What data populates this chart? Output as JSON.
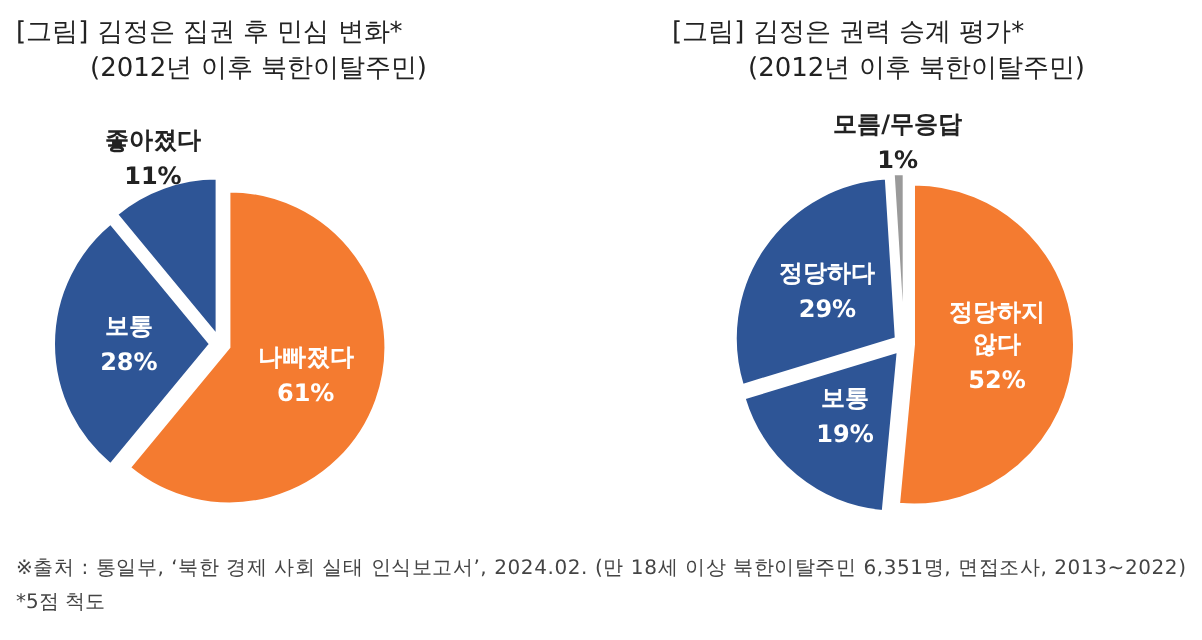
{
  "chart_data": [
    {
      "type": "pie",
      "title": "[그림] 김정은 집권 후 민심 변화*",
      "subtitle": "(2012년 이후 북한이탈주민)",
      "categories": [
        "나빠졌다",
        "보통",
        "좋아졌다"
      ],
      "values": [
        61,
        28,
        11
      ],
      "value_labels": [
        "61%",
        "28%",
        "11%"
      ],
      "colors": [
        "#f47b30",
        "#2e5596",
        "#2e5596"
      ],
      "annotations": [
        "※출처 : 통일부, ‘북한 경제 사회 실태 인식보고서’, 2024.02. (만 18세 이상 북한이탈주민 6,351명, 면접조사, 2013~2022)",
        "*5점 척도"
      ]
    },
    {
      "type": "pie",
      "title": "[그림] 김정은 권력 승계 평가*",
      "subtitle": "(2012년 이후 북한이탈주민)",
      "categories": [
        "정당하지 않다",
        "보통",
        "정당하다",
        "모름/무응답"
      ],
      "values": [
        52,
        19,
        29,
        1
      ],
      "value_labels": [
        "52%",
        "19%",
        "29%",
        "1%"
      ],
      "colors": [
        "#f47b30",
        "#2e5596",
        "#2e5596",
        "#9a9a9a"
      ]
    }
  ]
}
